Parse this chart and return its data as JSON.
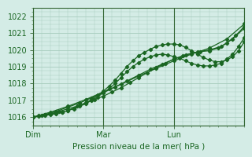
{
  "xlabel": "Pression niveau de la mer( hPa )",
  "bg_color": "#d4ece6",
  "grid_color": "#a8ccbe",
  "line_color": "#1a6622",
  "ylim": [
    1015.5,
    1022.5
  ],
  "xlim": [
    0,
    72
  ],
  "yticks": [
    1016,
    1017,
    1018,
    1019,
    1020,
    1021,
    1022
  ],
  "xtick_positions": [
    0,
    24,
    48
  ],
  "xtick_labels": [
    "Dim",
    "Mar",
    "Lun"
  ],
  "series": {
    "s1_x": [
      0,
      2,
      4,
      6,
      8,
      10,
      12,
      14,
      16,
      18,
      20,
      22,
      24,
      26,
      28,
      30,
      32,
      34,
      36,
      38,
      40,
      42,
      44,
      46,
      48,
      50,
      52,
      54,
      56,
      58,
      60,
      62,
      64,
      66,
      68,
      70,
      72
    ],
    "s1_y": [
      1016.0,
      1016.1,
      1016.15,
      1016.2,
      1016.25,
      1016.3,
      1016.4,
      1016.55,
      1016.7,
      1016.85,
      1017.05,
      1017.3,
      1017.55,
      1017.85,
      1018.2,
      1018.6,
      1019.0,
      1019.35,
      1019.65,
      1019.85,
      1020.05,
      1020.2,
      1020.3,
      1020.35,
      1020.35,
      1020.3,
      1020.15,
      1019.95,
      1019.75,
      1019.55,
      1019.4,
      1019.3,
      1019.3,
      1019.4,
      1019.6,
      1019.95,
      1020.5
    ],
    "s2_x": [
      0,
      2,
      4,
      6,
      8,
      10,
      12,
      14,
      16,
      18,
      20,
      22,
      24,
      26,
      28,
      30,
      32,
      34,
      36,
      38,
      40,
      42,
      44,
      46,
      48,
      50,
      52,
      54,
      56,
      58,
      60,
      62,
      64,
      66,
      68,
      70,
      72
    ],
    "s2_y": [
      1016.0,
      1016.05,
      1016.1,
      1016.15,
      1016.2,
      1016.3,
      1016.4,
      1016.5,
      1016.65,
      1016.8,
      1017.0,
      1017.2,
      1017.45,
      1017.7,
      1018.0,
      1018.35,
      1018.7,
      1019.0,
      1019.25,
      1019.45,
      1019.6,
      1019.7,
      1019.75,
      1019.7,
      1019.6,
      1019.5,
      1019.35,
      1019.2,
      1019.1,
      1019.05,
      1019.05,
      1019.1,
      1019.2,
      1019.45,
      1019.75,
      1020.2,
      1020.75
    ],
    "s3_x": [
      0,
      3,
      6,
      9,
      12,
      15,
      18,
      21,
      24,
      27,
      30,
      33,
      36,
      39,
      42,
      45,
      48,
      51,
      54,
      57,
      60,
      63,
      66,
      69,
      72
    ],
    "s3_y": [
      1016.0,
      1016.1,
      1016.2,
      1016.35,
      1016.5,
      1016.65,
      1016.85,
      1017.05,
      1017.25,
      1017.5,
      1017.75,
      1018.05,
      1018.35,
      1018.65,
      1018.95,
      1019.2,
      1019.45,
      1019.65,
      1019.8,
      1019.9,
      1019.95,
      1020.1,
      1020.4,
      1020.85,
      1021.4
    ],
    "s4_x": [
      0,
      4,
      8,
      12,
      16,
      20,
      24,
      28,
      32,
      36,
      40,
      44,
      48,
      52,
      56,
      60,
      64,
      68,
      72
    ],
    "s4_y": [
      1016.0,
      1016.15,
      1016.35,
      1016.6,
      1016.85,
      1017.15,
      1017.45,
      1017.8,
      1018.15,
      1018.5,
      1018.85,
      1019.15,
      1019.45,
      1019.7,
      1019.88,
      1020.0,
      1020.2,
      1020.65,
      1021.3
    ],
    "s5_x": [
      0,
      6,
      12,
      18,
      24,
      30,
      36,
      42,
      48,
      54,
      60,
      66,
      72
    ],
    "s5_y": [
      1016.0,
      1016.3,
      1016.65,
      1017.05,
      1017.5,
      1017.95,
      1018.45,
      1018.9,
      1019.35,
      1019.75,
      1020.1,
      1020.65,
      1021.55
    ]
  }
}
